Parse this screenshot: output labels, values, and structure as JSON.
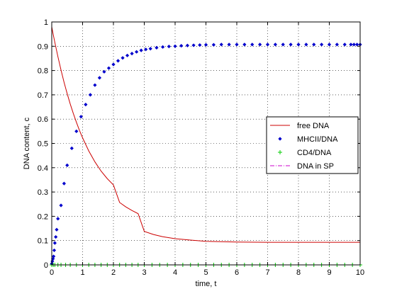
{
  "chart_data": {
    "type": "line",
    "title": "",
    "xlabel": "time, t",
    "ylabel": "DNA content, c",
    "xlim": [
      0,
      10
    ],
    "ylim": [
      0,
      1
    ],
    "xticks": [
      0,
      1,
      2,
      3,
      4,
      5,
      6,
      7,
      8,
      9,
      10
    ],
    "yticks": [
      0,
      0.1,
      0.2,
      0.3,
      0.4,
      0.5,
      0.6,
      0.7,
      0.8,
      0.9,
      1
    ],
    "xtick_labels": [
      "0",
      "1",
      "2",
      "3",
      "4",
      "5",
      "6",
      "7",
      "8",
      "9",
      "10"
    ],
    "ytick_labels": [
      "0",
      "0.1",
      "0.2",
      "0.3",
      "0.4",
      "0.5",
      "0.6",
      "0.7",
      "0.8",
      "0.9",
      "1"
    ],
    "grid": true,
    "legend_position": "right",
    "series": [
      {
        "name": "free DNA",
        "color": "#cc0000",
        "style": "line",
        "x": [
          0,
          0.05,
          0.1,
          0.2,
          0.3,
          0.4,
          0.5,
          0.6,
          0.7,
          0.8,
          0.9,
          1.0,
          1.2,
          1.4,
          1.6,
          1.8,
          2.0,
          2.2,
          2.4,
          2.6,
          2.8,
          3.0,
          3.3,
          3.6,
          4.0,
          4.5,
          5.0,
          6.0,
          7.0,
          8.0,
          9.0,
          10.0
        ],
        "y": [
          0.98,
          0.947,
          0.916,
          0.857,
          0.802,
          0.751,
          0.705,
          0.662,
          0.623,
          0.587,
          0.553,
          0.523,
          0.469,
          0.424,
          0.386,
          0.355,
          0.329,
          0.257,
          0.239,
          0.224,
          0.211,
          0.138,
          0.125,
          0.116,
          0.108,
          0.102,
          0.097,
          0.094,
          0.093,
          0.093,
          0.093,
          0.093
        ]
      },
      {
        "name": "MHCII/DNA",
        "color": "#0000cc",
        "style": "diamond",
        "x": [
          0,
          0.02,
          0.04,
          0.06,
          0.08,
          0.1,
          0.13,
          0.16,
          0.2,
          0.3,
          0.4,
          0.5,
          0.65,
          0.8,
          0.95,
          1.1,
          1.25,
          1.4,
          1.55,
          1.7,
          1.85,
          2.0,
          2.15,
          2.3,
          2.45,
          2.6,
          2.75,
          2.9,
          3.05,
          3.2,
          3.4,
          3.6,
          3.8,
          4.0,
          4.2,
          4.4,
          4.6,
          4.8,
          5.0,
          5.25,
          5.5,
          5.75,
          6.0,
          6.25,
          6.5,
          6.75,
          7.0,
          7.25,
          7.5,
          7.75,
          8.0,
          8.25,
          8.5,
          8.75,
          9.0,
          9.25,
          9.5,
          9.7,
          9.8,
          9.9,
          10.0
        ],
        "y": [
          0.005,
          0.015,
          0.025,
          0.035,
          0.06,
          0.09,
          0.115,
          0.145,
          0.19,
          0.245,
          0.335,
          0.41,
          0.48,
          0.55,
          0.61,
          0.66,
          0.7,
          0.74,
          0.77,
          0.795,
          0.81,
          0.825,
          0.84,
          0.852,
          0.862,
          0.87,
          0.877,
          0.883,
          0.887,
          0.89,
          0.894,
          0.897,
          0.899,
          0.9,
          0.902,
          0.903,
          0.904,
          0.905,
          0.906,
          0.906,
          0.907,
          0.907,
          0.907,
          0.907,
          0.907,
          0.907,
          0.907,
          0.907,
          0.907,
          0.907,
          0.907,
          0.907,
          0.907,
          0.907,
          0.907,
          0.907,
          0.907,
          0.907,
          0.907,
          0.907,
          0.907
        ]
      },
      {
        "name": "CD4/DNA",
        "color": "#00cc00",
        "style": "plus",
        "x": [
          0,
          0.05,
          0.1,
          0.2,
          0.3,
          0.45,
          0.6,
          0.8,
          1.0,
          1.2,
          1.4,
          1.6,
          1.8,
          2.0,
          2.2,
          2.4,
          2.6,
          2.8,
          3.0,
          3.25,
          3.5,
          3.75,
          4.0,
          4.25,
          4.5,
          4.75,
          5.0,
          5.25,
          5.5,
          5.75,
          6.0,
          6.25,
          6.5,
          6.75,
          7.0,
          7.25,
          7.5,
          7.75,
          8.0,
          8.25,
          8.5,
          8.75,
          9.0,
          9.25,
          9.5,
          9.75,
          10.0
        ],
        "y": [
          0,
          0,
          0,
          0,
          0,
          0,
          0,
          0,
          0,
          0,
          0,
          0,
          0,
          0,
          0,
          0,
          0,
          0,
          0,
          0,
          0,
          0,
          0,
          0,
          0,
          0,
          0,
          0,
          0,
          0,
          0,
          0,
          0,
          0,
          0,
          0,
          0,
          0,
          0,
          0,
          0,
          0,
          0,
          0,
          0,
          0,
          0
        ]
      },
      {
        "name": "DNA in SP",
        "color": "#cc00cc",
        "style": "dashdot",
        "x": [
          0,
          10
        ],
        "y": [
          0,
          0
        ]
      }
    ]
  }
}
